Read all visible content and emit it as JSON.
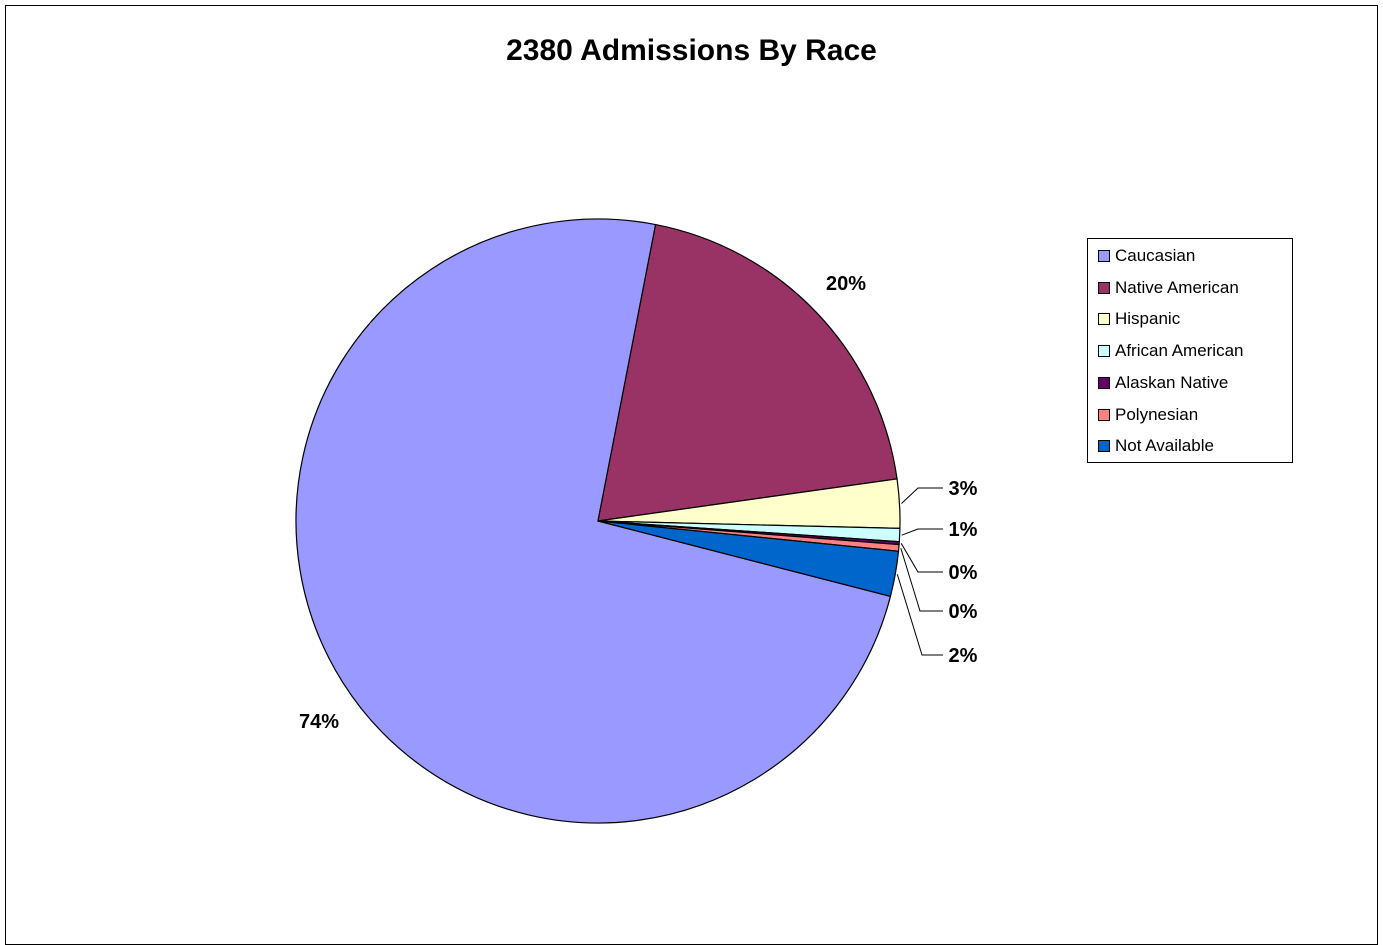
{
  "chart_data": {
    "type": "pie",
    "title": "2380 Admissions By Race",
    "categories": [
      "Caucasian",
      "Native American",
      "Hispanic",
      "African American",
      "Alaskan Native",
      "Polynesian",
      "Not Available"
    ],
    "values": [
      74,
      20,
      3,
      1,
      0,
      0,
      2
    ],
    "value_labels": [
      "74%",
      "20%",
      "3%",
      "1%",
      "0%",
      "0%",
      "2%"
    ],
    "colors": [
      "#9999ff",
      "#993366",
      "#ffffcc",
      "#ccffff",
      "#660066",
      "#ff8080",
      "#0066cc"
    ],
    "legend_position": "right"
  }
}
